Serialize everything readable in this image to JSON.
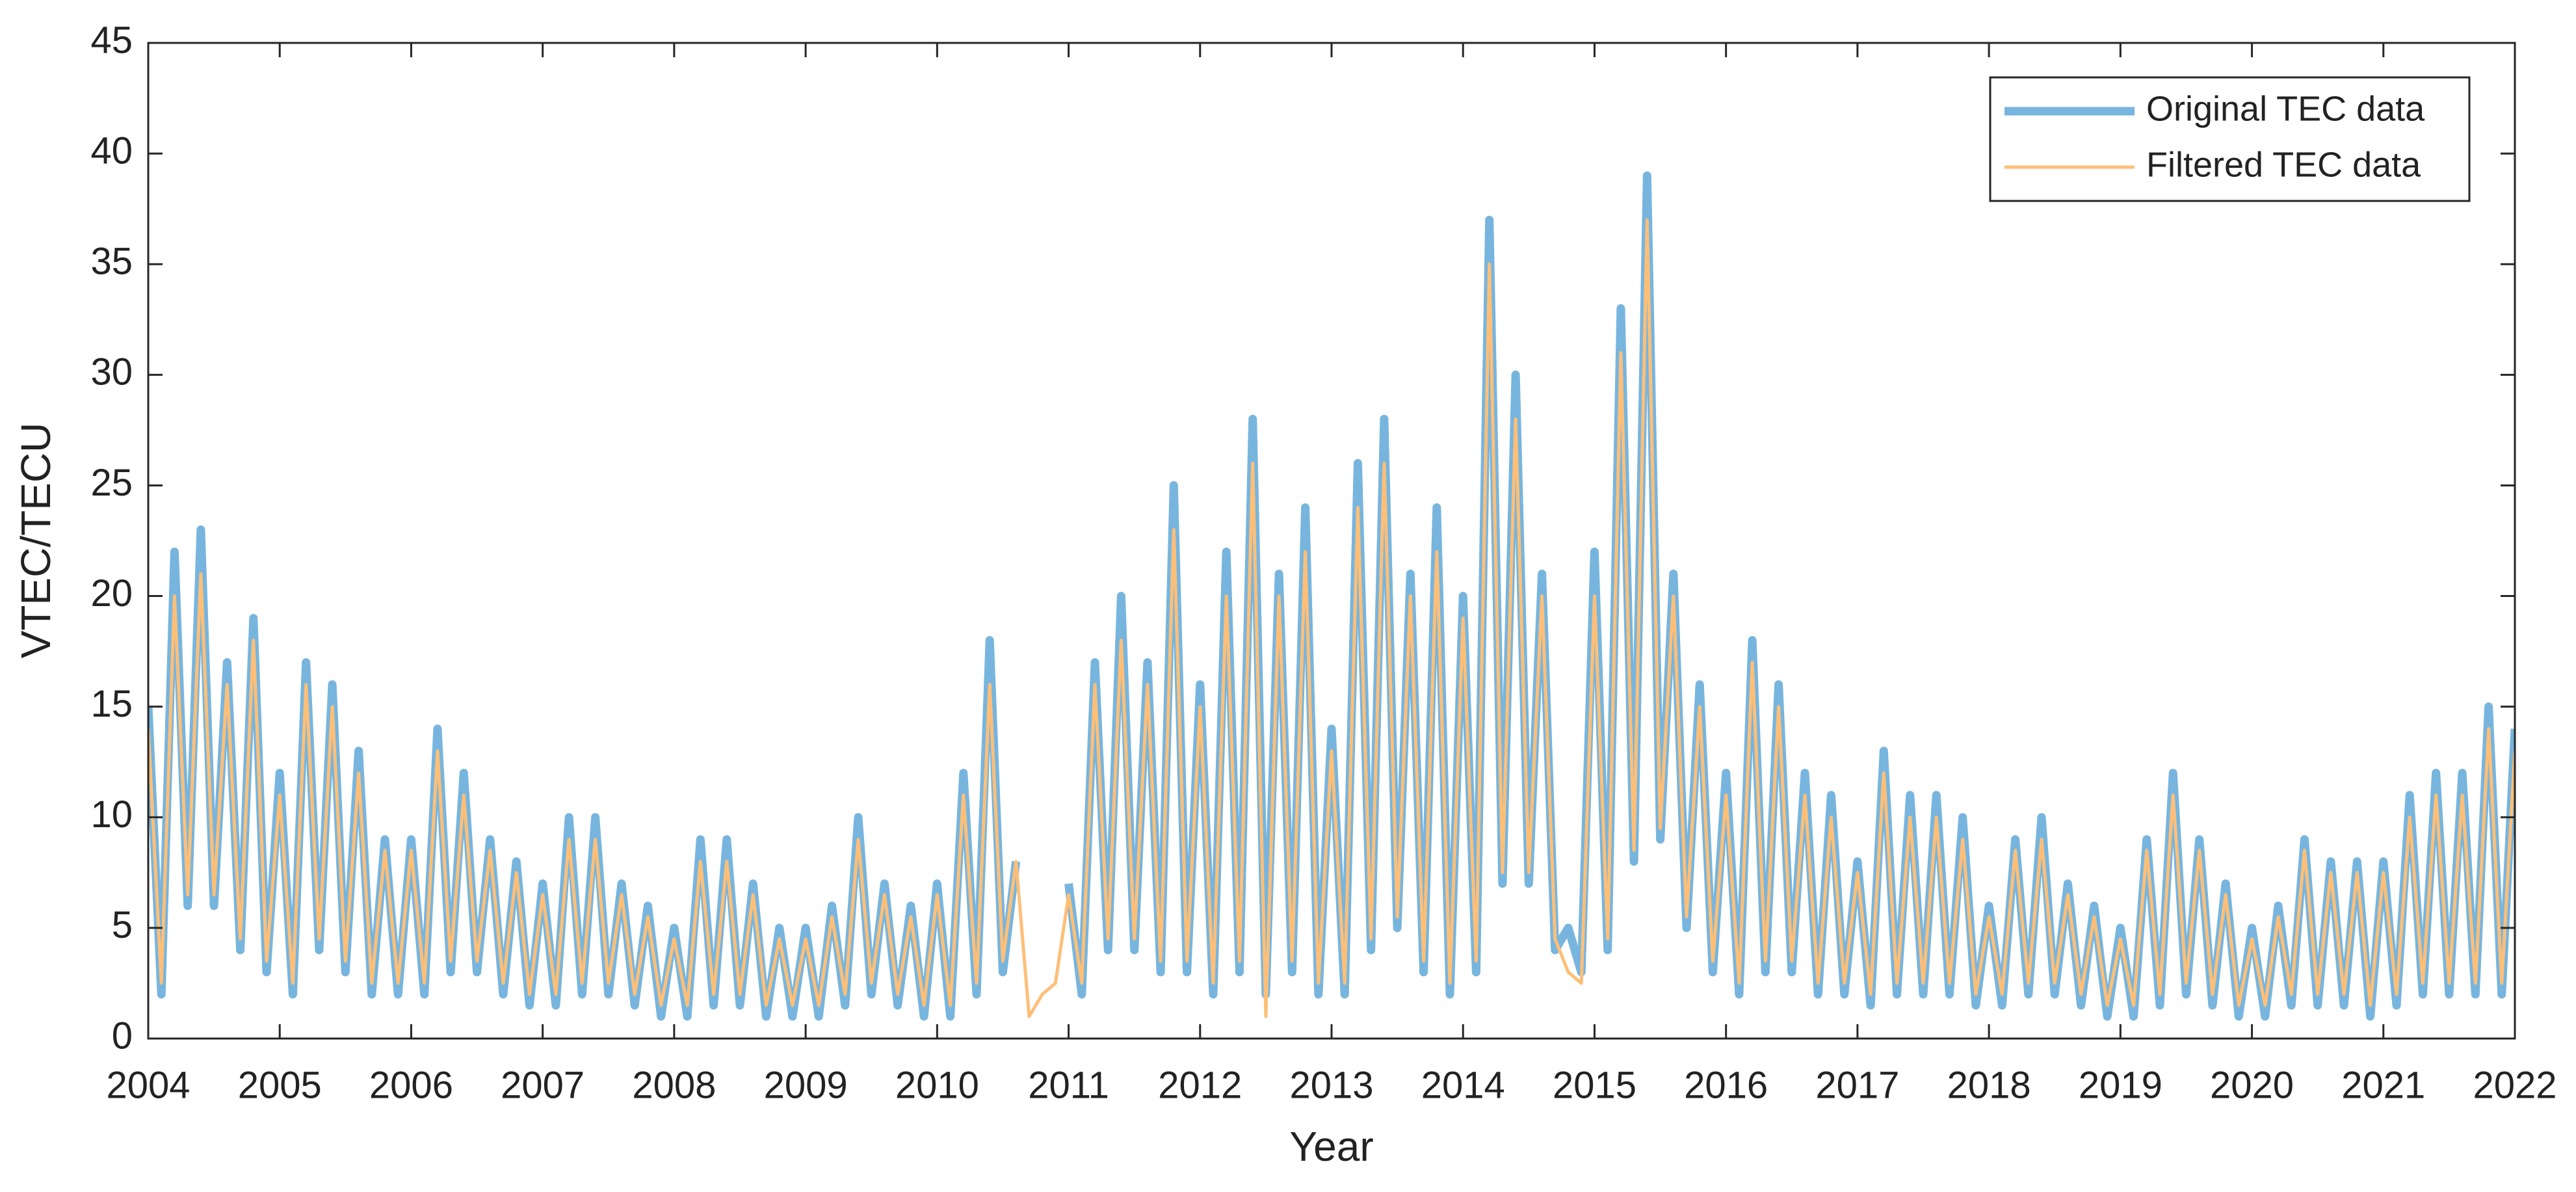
{
  "chart_data": {
    "type": "line",
    "xlabel": "Year",
    "ylabel": "VTEC/TECU",
    "xlim": [
      2004,
      2022
    ],
    "ylim": [
      0,
      45
    ],
    "xticks": [
      2004,
      2005,
      2006,
      2007,
      2008,
      2009,
      2010,
      2011,
      2012,
      2013,
      2014,
      2015,
      2016,
      2017,
      2018,
      2019,
      2020,
      2021,
      2022
    ],
    "yticks": [
      0,
      5,
      10,
      15,
      20,
      25,
      30,
      35,
      40,
      45
    ],
    "legend": "upper right",
    "x": [
      2004,
      2004.1,
      2004.2,
      2004.3,
      2004.4,
      2004.5,
      2004.6,
      2004.7,
      2004.8,
      2004.9,
      2005,
      2005.1,
      2005.2,
      2005.3,
      2005.4,
      2005.5,
      2005.6,
      2005.7,
      2005.8,
      2005.9,
      2006,
      2006.1,
      2006.2,
      2006.3,
      2006.4,
      2006.5,
      2006.6,
      2006.7,
      2006.8,
      2006.9,
      2007,
      2007.1,
      2007.2,
      2007.3,
      2007.4,
      2007.5,
      2007.6,
      2007.7,
      2007.8,
      2007.9,
      2008,
      2008.1,
      2008.2,
      2008.3,
      2008.4,
      2008.5,
      2008.6,
      2008.7,
      2008.8,
      2008.9,
      2009,
      2009.1,
      2009.2,
      2009.3,
      2009.4,
      2009.5,
      2009.6,
      2009.7,
      2009.8,
      2009.9,
      2010,
      2010.1,
      2010.2,
      2010.3,
      2010.4,
      2010.5,
      2010.6,
      2010.7,
      2010.8,
      2010.9,
      2011,
      2011.1,
      2011.2,
      2011.3,
      2011.4,
      2011.5,
      2011.6,
      2011.7,
      2011.8,
      2011.9,
      2012,
      2012.1,
      2012.2,
      2012.3,
      2012.4,
      2012.5,
      2012.6,
      2012.7,
      2012.8,
      2012.9,
      2013,
      2013.1,
      2013.2,
      2013.3,
      2013.4,
      2013.5,
      2013.6,
      2013.7,
      2013.8,
      2013.9,
      2014,
      2014.1,
      2014.2,
      2014.3,
      2014.4,
      2014.5,
      2014.6,
      2014.7,
      2014.8,
      2014.9,
      2015,
      2015.1,
      2015.2,
      2015.3,
      2015.4,
      2015.5,
      2015.6,
      2015.7,
      2015.8,
      2015.9,
      2016,
      2016.1,
      2016.2,
      2016.3,
      2016.4,
      2016.5,
      2016.6,
      2016.7,
      2016.8,
      2016.9,
      2017,
      2017.1,
      2017.2,
      2017.3,
      2017.4,
      2017.5,
      2017.6,
      2017.7,
      2017.8,
      2017.9,
      2018,
      2018.1,
      2018.2,
      2018.3,
      2018.4,
      2018.5,
      2018.6,
      2018.7,
      2018.8,
      2018.9,
      2019,
      2019.1,
      2019.2,
      2019.3,
      2019.4,
      2019.5,
      2019.6,
      2019.7,
      2019.8,
      2019.9,
      2020,
      2020.1,
      2020.2,
      2020.3,
      2020.4,
      2020.5,
      2020.6,
      2020.7,
      2020.8,
      2020.9,
      2021,
      2021.1,
      2021.2,
      2021.3,
      2021.4,
      2021.5,
      2021.6,
      2021.7,
      2021.8,
      2021.9,
      2022
    ],
    "series": [
      {
        "name": "Original TEC data",
        "color": "#77b5de",
        "width": 13,
        "values": [
          15,
          2,
          22,
          6,
          23,
          6,
          17,
          4,
          19,
          3,
          12,
          2,
          17,
          4,
          16,
          3,
          13,
          2,
          9,
          2,
          9,
          2,
          14,
          3,
          12,
          3,
          9,
          2,
          8,
          1.5,
          7,
          1.5,
          10,
          2,
          10,
          2,
          7,
          1.5,
          6,
          1,
          5,
          1,
          9,
          1.5,
          9,
          1.5,
          7,
          1,
          5,
          1,
          5,
          1,
          6,
          1.5,
          10,
          2,
          7,
          1.5,
          6,
          1,
          7,
          1,
          12,
          2,
          18,
          3,
          8,
          null,
          null,
          null,
          7,
          2,
          17,
          4,
          20,
          4,
          17,
          3,
          25,
          3,
          16,
          2,
          22,
          3,
          28,
          2,
          21,
          3,
          24,
          2,
          14,
          2,
          26,
          4,
          28,
          5,
          21,
          3,
          24,
          2,
          20,
          3,
          37,
          7,
          30,
          7,
          21,
          4,
          5,
          3,
          22,
          4,
          33,
          8,
          39,
          9,
          21,
          5,
          16,
          3,
          12,
          2,
          18,
          3,
          16,
          3,
          12,
          2,
          11,
          2,
          8,
          1.5,
          13,
          2,
          11,
          2,
          11,
          2,
          10,
          1.5,
          6,
          1.5,
          9,
          2,
          10,
          2,
          7,
          1.5,
          6,
          1,
          5,
          1,
          9,
          1.5,
          12,
          2,
          9,
          1.5,
          7,
          1,
          5,
          1,
          6,
          1.5,
          9,
          1.5,
          8,
          1.5,
          8,
          1,
          8,
          1.5,
          11,
          2,
          12,
          2,
          12,
          2,
          15,
          2,
          14
        ]
      },
      {
        "name": "Filtered TEC data",
        "color": "#fdbf78",
        "width": 5,
        "values": [
          14,
          2.5,
          20,
          6.5,
          21,
          6.5,
          16,
          4.5,
          18,
          3.5,
          11,
          2.5,
          16,
          4.5,
          15,
          3.5,
          12,
          2.5,
          8.5,
          2.5,
          8.5,
          2.5,
          13,
          3.5,
          11,
          3.5,
          8.5,
          2.5,
          7.5,
          2,
          6.5,
          2,
          9,
          2.5,
          9,
          2.5,
          6.5,
          2,
          5.5,
          1.5,
          4.5,
          1.5,
          8,
          2,
          8,
          2,
          6.5,
          1.5,
          4.5,
          1.5,
          4.5,
          1.5,
          5.5,
          2,
          9,
          2.5,
          6.5,
          2,
          5.5,
          1.5,
          6.5,
          1.5,
          11,
          2.5,
          16,
          3.5,
          8,
          1,
          2,
          2.5,
          6.5,
          2.5,
          16,
          4.5,
          18,
          4.5,
          16,
          3.5,
          23,
          3.5,
          15,
          2.5,
          20,
          3.5,
          26,
          1,
          20,
          3.5,
          22,
          2.5,
          13,
          2.5,
          24,
          4.5,
          26,
          5.5,
          20,
          3.5,
          22,
          2.5,
          19,
          3.5,
          35,
          7.5,
          28,
          7.5,
          20,
          4.5,
          3,
          2.5,
          20,
          4.5,
          31,
          8.5,
          37,
          9.5,
          20,
          5.5,
          15,
          3.5,
          11,
          2.5,
          17,
          3.5,
          15,
          3.5,
          11,
          2.5,
          10,
          2.5,
          7.5,
          2,
          12,
          2.5,
          10,
          2.5,
          10,
          2.5,
          9,
          2,
          5.5,
          2,
          8.5,
          2.5,
          9,
          2.5,
          6.5,
          2,
          5.5,
          1.5,
          4.5,
          1.5,
          8.5,
          2,
          11,
          2.5,
          8.5,
          2,
          6.5,
          1.5,
          4.5,
          1.5,
          5.5,
          2,
          8.5,
          2,
          7.5,
          2,
          7.5,
          1.5,
          7.5,
          2,
          10,
          2.5,
          11,
          2.5,
          11,
          2.5,
          14,
          2.5,
          13
        ]
      }
    ]
  }
}
